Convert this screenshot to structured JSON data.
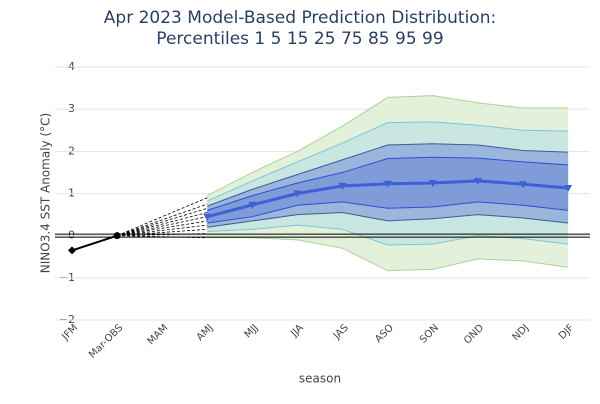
{
  "chart_data": {
    "type": "fan",
    "title_lines": [
      "Apr 2023 Model-Based Prediction Distribution:",
      "Percentiles 1 5 15 25 75 85 95 99"
    ],
    "x_label": "season",
    "y_label": "NINO3.4 SST Anomaly (°C)",
    "categories": [
      "JFM",
      "Mar-OBS",
      "MAM",
      "AMJ",
      "MJJ",
      "JJA",
      "JAS",
      "ASO",
      "SON",
      "OND",
      "NDJ",
      "DJF"
    ],
    "ylim": [
      -2,
      4
    ],
    "yticks": [
      {
        "value": -2,
        "label": "−2"
      },
      {
        "value": -1,
        "label": "−1"
      },
      0,
      1,
      2,
      3,
      4
    ],
    "grid": true,
    "zero_line": true,
    "observed": {
      "color": "#000000",
      "values": [
        -0.35,
        0,
        null,
        null,
        null,
        null,
        null,
        null,
        null,
        null,
        null,
        null
      ]
    },
    "members_amj": [
      -0.05,
      0.05,
      0.15,
      0.25,
      0.35,
      0.45,
      0.55,
      0.65,
      0.75,
      0.9
    ],
    "band_colors": [
      "#e3f1da",
      "#c9e6e0",
      "#9bb6dc",
      "#7f9bd8"
    ],
    "series": [
      {
        "color": "#a9d39a",
        "values": [
          null,
          null,
          null,
          -0.05,
          -0.05,
          -0.1,
          -0.3,
          -0.83,
          -0.8,
          -0.55,
          -0.6,
          -0.75
        ]
      },
      {
        "color": "#7cc6d6",
        "values": [
          null,
          null,
          null,
          0.1,
          0.15,
          0.25,
          0.15,
          -0.22,
          -0.2,
          0.0,
          -0.07,
          -0.2
        ]
      },
      {
        "color": "#3e5a9a",
        "values": [
          null,
          null,
          null,
          0.2,
          0.35,
          0.5,
          0.55,
          0.35,
          0.4,
          0.5,
          0.42,
          0.3
        ]
      },
      {
        "color": "#2a4fd6",
        "values": [
          null,
          null,
          null,
          0.3,
          0.45,
          0.72,
          0.8,
          0.65,
          0.68,
          0.8,
          0.72,
          0.6
        ]
      },
      {
        "color": "#2a4fd6",
        "values": [
          null,
          null,
          null,
          0.6,
          0.95,
          1.25,
          1.5,
          1.83,
          1.86,
          1.84,
          1.75,
          1.68
        ]
      },
      {
        "color": "#3e5a9a",
        "values": [
          null,
          null,
          null,
          0.7,
          1.1,
          1.45,
          1.8,
          2.15,
          2.18,
          2.15,
          2.02,
          1.98
        ]
      },
      {
        "color": "#7cc6d6",
        "values": [
          null,
          null,
          null,
          0.82,
          1.3,
          1.75,
          2.2,
          2.68,
          2.7,
          2.62,
          2.5,
          2.48
        ]
      },
      {
        "color": "#a9d39a",
        "values": [
          null,
          null,
          null,
          0.95,
          1.5,
          2.0,
          2.6,
          3.28,
          3.32,
          3.15,
          3.03,
          3.03
        ]
      }
    ],
    "median": {
      "color": "#3f5fd8",
      "values": [
        null,
        null,
        null,
        0.45,
        0.73,
        1.0,
        1.18,
        1.23,
        1.25,
        1.3,
        1.22,
        1.13
      ]
    }
  }
}
